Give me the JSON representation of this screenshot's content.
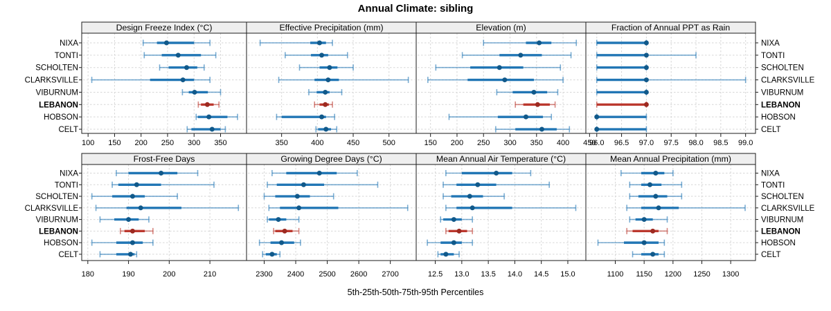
{
  "title": "Annual Climate: sibling",
  "caption": "5th-25th-50th-75th-95th Percentiles",
  "sites": [
    "NIXA",
    "TONTI",
    "SCHOLTEN",
    "CLARKSVILLE",
    "VIBURNUM",
    "LEBANON",
    "HOBSON",
    "CELT"
  ],
  "highlight_site": "LEBANON",
  "colors": {
    "series": "#2176b5",
    "series_dot": "#11598a",
    "highlight": "#bb382e",
    "highlight_dot": "#9d2a21",
    "strip_bg": "#efefef",
    "panel_border": "#1b1b1b",
    "gridline": "#d6d6d6",
    "text": "#000000"
  },
  "chart_data": {
    "type": "trellis-percentile-dotplot",
    "grid_rows": 2,
    "grid_cols": 4,
    "percentile_levels": [
      5,
      25,
      50,
      75,
      95
    ],
    "grid": true,
    "panels": [
      {
        "title": "Design Freeze Index (°C)",
        "row": 0,
        "col": 0,
        "xlim": [
          88,
          399
        ],
        "ticks": [
          100,
          150,
          200,
          250,
          300,
          350
        ],
        "tick_labels": [
          "100",
          "150",
          "200",
          "250",
          "300",
          "350"
        ],
        "series": {
          "NIXA": [
            204,
            230,
            248,
            300,
            330
          ],
          "TONTI": [
            206,
            239,
            270,
            313,
            341
          ],
          "SCHOLTEN": [
            235,
            252,
            286,
            306,
            319
          ],
          "CLARKSVILLE": [
            107,
            217,
            279,
            300,
            330
          ],
          "VIBURNUM": [
            278,
            290,
            301,
            326,
            350
          ],
          "LEBANON": [
            308,
            313,
            325,
            337,
            347
          ],
          "HOBSON": [
            304,
            307,
            328,
            363,
            382
          ],
          "CELT": [
            287,
            295,
            334,
            350,
            359
          ]
        }
      },
      {
        "title": "Effective Precipitation (mm)",
        "row": 0,
        "col": 1,
        "xlim": [
          301,
          538
        ],
        "ticks": [
          350,
          400,
          450,
          500
        ],
        "tick_labels": [
          "350",
          "400",
          "450",
          "500"
        ],
        "series": {
          "NIXA": [
            320,
            390,
            403,
            412,
            421
          ],
          "TONTI": [
            355,
            391,
            406,
            415,
            442
          ],
          "SCHOLTEN": [
            375,
            403,
            417,
            428,
            450
          ],
          "CLARKSVILLE": [
            346,
            396,
            415,
            430,
            527
          ],
          "VIBURNUM": [
            388,
            399,
            411,
            417,
            434
          ],
          "LEBANON": [
            396,
            403,
            411,
            416,
            421
          ],
          "HOBSON": [
            343,
            350,
            406,
            412,
            424
          ],
          "CELT": [
            398,
            401,
            412,
            419,
            427
          ]
        }
      },
      {
        "title": "Elevation (m)",
        "row": 0,
        "col": 2,
        "xlim": [
          123,
          443
        ],
        "ticks": [
          150,
          200,
          250,
          300,
          350,
          400,
          450
        ],
        "tick_labels": [
          "150",
          "200",
          "250",
          "300",
          "350",
          "400",
          "450"
        ],
        "series": {
          "NIXA": [
            250,
            330,
            355,
            378,
            425
          ],
          "TONTI": [
            210,
            280,
            320,
            360,
            415
          ],
          "SCHOLTEN": [
            160,
            225,
            280,
            325,
            395
          ],
          "CLARKSVILLE": [
            145,
            220,
            290,
            345,
            400
          ],
          "VIBURNUM": [
            275,
            305,
            345,
            370,
            390
          ],
          "LEBANON": [
            310,
            325,
            352,
            375,
            385
          ],
          "HOBSON": [
            185,
            277,
            330,
            362,
            378
          ],
          "CELT": [
            273,
            310,
            360,
            388,
            412
          ]
        }
      },
      {
        "title": "Fraction of Annual PPT as Rain",
        "row": 0,
        "col": 3,
        "xlim": [
          95.78,
          99.2
        ],
        "ticks": [
          96.0,
          96.5,
          97.0,
          97.5,
          98.0,
          98.5,
          99.0
        ],
        "tick_labels": [
          "96.0",
          "96.5",
          "97.0",
          "97.5",
          "98.0",
          "98.5",
          "99.0"
        ],
        "series": {
          "NIXA": [
            96,
            96,
            97,
            97,
            97
          ],
          "TONTI": [
            96,
            96,
            97,
            97,
            98
          ],
          "SCHOLTEN": [
            96,
            96,
            97,
            97,
            97
          ],
          "CLARKSVILLE": [
            96,
            96,
            97,
            97,
            99
          ],
          "VIBURNUM": [
            96,
            96,
            97,
            97,
            97
          ],
          "LEBANON": [
            96,
            96,
            97,
            97,
            97
          ],
          "HOBSON": [
            96,
            96,
            96,
            97,
            97
          ],
          "CELT": [
            96,
            96,
            96,
            97,
            97
          ]
        }
      },
      {
        "title": "Frost-Free Days",
        "row": 1,
        "col": 0,
        "xlim": [
          178.5,
          219
        ],
        "ticks": [
          180,
          190,
          200,
          210
        ],
        "tick_labels": [
          "180",
          "190",
          "200",
          "210"
        ],
        "series": {
          "NIXA": [
            187,
            190,
            198,
            202,
            207
          ],
          "TONTI": [
            186,
            187.5,
            192,
            198,
            211
          ],
          "SCHOLTEN": [
            181,
            186,
            191,
            194,
            202
          ],
          "CLARKSVILLE": [
            182,
            189.5,
            193,
            203,
            217
          ],
          "VIBURNUM": [
            183,
            186.5,
            190,
            192.5,
            195
          ],
          "LEBANON": [
            188,
            189,
            191,
            194,
            196
          ],
          "HOBSON": [
            181,
            187,
            191,
            193.5,
            196
          ],
          "CELT": [
            183,
            187,
            190.5,
            191.5,
            192
          ]
        }
      },
      {
        "title": "Growing Degree Days (°C)",
        "row": 1,
        "col": 1,
        "xlim": [
          2244,
          2782
        ],
        "ticks": [
          2300,
          2400,
          2500,
          2600,
          2700
        ],
        "tick_labels": [
          "2300",
          "2400",
          "2500",
          "2600",
          "2700"
        ],
        "series": {
          "NIXA": [
            2325,
            2370,
            2475,
            2530,
            2595
          ],
          "TONTI": [
            2310,
            2340,
            2425,
            2490,
            2660
          ],
          "SCHOLTEN": [
            2300,
            2335,
            2405,
            2445,
            2520
          ],
          "CLARKSVILLE": [
            2315,
            2350,
            2410,
            2535,
            2755
          ],
          "VIBURNUM": [
            2310,
            2315,
            2345,
            2370,
            2410
          ],
          "LEBANON": [
            2330,
            2335,
            2365,
            2390,
            2410
          ],
          "HOBSON": [
            2285,
            2320,
            2355,
            2395,
            2415
          ],
          "CELT": [
            2295,
            2305,
            2325,
            2340,
            2350
          ]
        }
      },
      {
        "title": "Mean Annual Air Temperature (°C)",
        "row": 1,
        "col": 2,
        "xlim": [
          12.14,
          15.34
        ],
        "ticks": [
          12.5,
          13.0,
          13.5,
          14.0,
          14.5,
          15.0
        ],
        "tick_labels": [
          "12.5",
          "13.0",
          "13.5",
          "14.0",
          "14.5",
          "15.0"
        ],
        "series": {
          "NIXA": [
            12.7,
            13.0,
            13.65,
            13.95,
            14.3
          ],
          "TONTI": [
            12.65,
            12.9,
            13.3,
            13.65,
            14.65
          ],
          "SCHOLTEN": [
            12.65,
            12.8,
            13.15,
            13.4,
            13.8
          ],
          "CLARKSVILLE": [
            12.7,
            12.9,
            13.2,
            13.95,
            15.15
          ],
          "VIBURNUM": [
            12.6,
            12.65,
            12.85,
            13.0,
            13.2
          ],
          "LEBANON": [
            12.7,
            12.75,
            12.95,
            13.1,
            13.2
          ],
          "HOBSON": [
            12.35,
            12.6,
            12.85,
            13.0,
            13.2
          ],
          "CELT": [
            12.55,
            12.6,
            12.7,
            12.85,
            12.95
          ]
        }
      },
      {
        "title": "Mean Annual Precipitation (mm)",
        "row": 1,
        "col": 3,
        "xlim": [
          1049,
          1343
        ],
        "ticks": [
          1100,
          1150,
          1200,
          1250,
          1300
        ],
        "tick_labels": [
          "1100",
          "1150",
          "1200",
          "1250",
          "1300"
        ],
        "series": {
          "NIXA": [
            1110,
            1145,
            1170,
            1185,
            1200
          ],
          "TONTI": [
            1125,
            1145,
            1160,
            1180,
            1215
          ],
          "SCHOLTEN": [
            1125,
            1140,
            1170,
            1190,
            1215
          ],
          "CLARKSVILLE": [
            1120,
            1145,
            1175,
            1210,
            1325
          ],
          "VIBURNUM": [
            1125,
            1135,
            1150,
            1165,
            1190
          ],
          "LEBANON": [
            1120,
            1130,
            1165,
            1175,
            1190
          ],
          "HOBSON": [
            1070,
            1115,
            1150,
            1175,
            1185
          ],
          "CELT": [
            1130,
            1145,
            1165,
            1175,
            1185
          ]
        }
      }
    ]
  }
}
